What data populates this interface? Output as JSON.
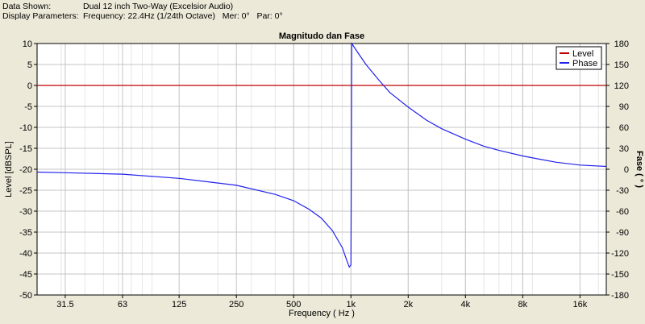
{
  "header": {
    "data_shown_label": "Data Shown:",
    "data_shown_value": "Dual 12 inch Two-Way (Excelsior Audio)",
    "display_params_label": "Display Parameters:",
    "display_params_value": "Frequency: 22.4Hz (1/24th Octave)   Mer: 0°   Par: 0°"
  },
  "colors": {
    "window_bg": "#ece9d8",
    "plot_bg": "#ffffff",
    "level_line": "#c00000",
    "phase_line": "#2222ee"
  },
  "chart_data": {
    "type": "line",
    "title": "Magnitudo dan Fase",
    "xlabel": "Frequency ( Hz )",
    "ylabel_left": "Level [dBSPL]",
    "ylabel_right": "Fase ( ° )",
    "x_scale": "log",
    "xlim": [
      22.4,
      22000
    ],
    "x_ticks": [
      {
        "value": 31.5,
        "label": "31.5"
      },
      {
        "value": 63,
        "label": "63"
      },
      {
        "value": 125,
        "label": "125"
      },
      {
        "value": 250,
        "label": "250"
      },
      {
        "value": 500,
        "label": "500"
      },
      {
        "value": 1000,
        "label": "1k"
      },
      {
        "value": 2000,
        "label": "2k"
      },
      {
        "value": 4000,
        "label": "4k"
      },
      {
        "value": 8000,
        "label": "8k"
      },
      {
        "value": 16000,
        "label": "16k"
      }
    ],
    "ylim_left": [
      -50,
      10
    ],
    "y_ticks_left": [
      10,
      5,
      0,
      -5,
      -10,
      -15,
      -20,
      -25,
      -30,
      -35,
      -40,
      -45,
      -50
    ],
    "ylim_right": [
      -180,
      180
    ],
    "y_ticks_right": [
      180,
      150,
      120,
      90,
      60,
      30,
      0,
      -30,
      -60,
      -90,
      -120,
      -150,
      -180
    ],
    "grid": true,
    "legend_position": "top-right",
    "series": [
      {
        "name": "Level",
        "axis": "left",
        "x": [
          22.4,
          22000
        ],
        "y": [
          0,
          0
        ]
      },
      {
        "name": "Phase",
        "axis": "right",
        "x": [
          22.4,
          31.5,
          63,
          125,
          250,
          400,
          500,
          600,
          700,
          800,
          900,
          950,
          980,
          1000,
          1010,
          1100,
          1200,
          1400,
          1600,
          2000,
          2500,
          3000,
          4000,
          5000,
          6000,
          8000,
          10000,
          12000,
          16000,
          22000
        ],
        "y": [
          -4,
          -5,
          -7,
          -13,
          -23,
          -36,
          -45,
          -57,
          -70,
          -88,
          -112,
          -130,
          -140,
          -137,
          180,
          165,
          150,
          128,
          110,
          89,
          70,
          58,
          43,
          33,
          27,
          19,
          14,
          10,
          6,
          4
        ]
      }
    ]
  }
}
